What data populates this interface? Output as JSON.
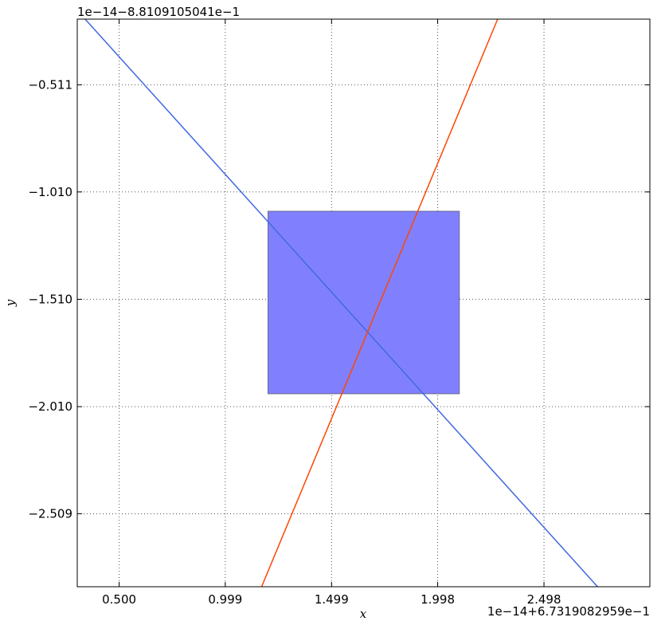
{
  "chart_data": {
    "type": "line",
    "title": "",
    "xlabel": "x",
    "ylabel": "y",
    "x_offset_text": "1e−14+6.7319082959e−1",
    "y_offset_text": "1e−14−8.8109105041e−1",
    "xlim": [
      0.303,
      2.996
    ],
    "ylim": [
      -2.849,
      -0.205
    ],
    "x_ticks": [
      {
        "value": 0.5,
        "label": "0.500"
      },
      {
        "value": 0.999,
        "label": "0.999"
      },
      {
        "value": 1.499,
        "label": "1.499"
      },
      {
        "value": 1.998,
        "label": "1.998"
      },
      {
        "value": 2.498,
        "label": "2.498"
      }
    ],
    "y_ticks": [
      {
        "value": -0.511,
        "label": "−0.511"
      },
      {
        "value": -1.01,
        "label": "−1.010"
      },
      {
        "value": -1.51,
        "label": "−1.510"
      },
      {
        "value": -2.01,
        "label": "−2.010"
      },
      {
        "value": -2.509,
        "label": "−2.509"
      }
    ],
    "grid": true,
    "series": [
      {
        "color": "#4169e1",
        "points": [
          [
            0.34,
            -0.205
          ],
          [
            2.75,
            -2.849
          ]
        ]
      },
      {
        "color": "#ff4500",
        "points": [
          [
            1.17,
            -2.849
          ],
          [
            2.28,
            -0.205
          ]
        ]
      }
    ],
    "rectangle": {
      "x": [
        1.2,
        2.1
      ],
      "y": [
        -1.95,
        -1.1
      ],
      "fill": "#8080ff",
      "edge": "#6a6a8a"
    },
    "colors": {
      "axes": "#000000",
      "grid": "#555555",
      "background": "#ffffff"
    }
  }
}
